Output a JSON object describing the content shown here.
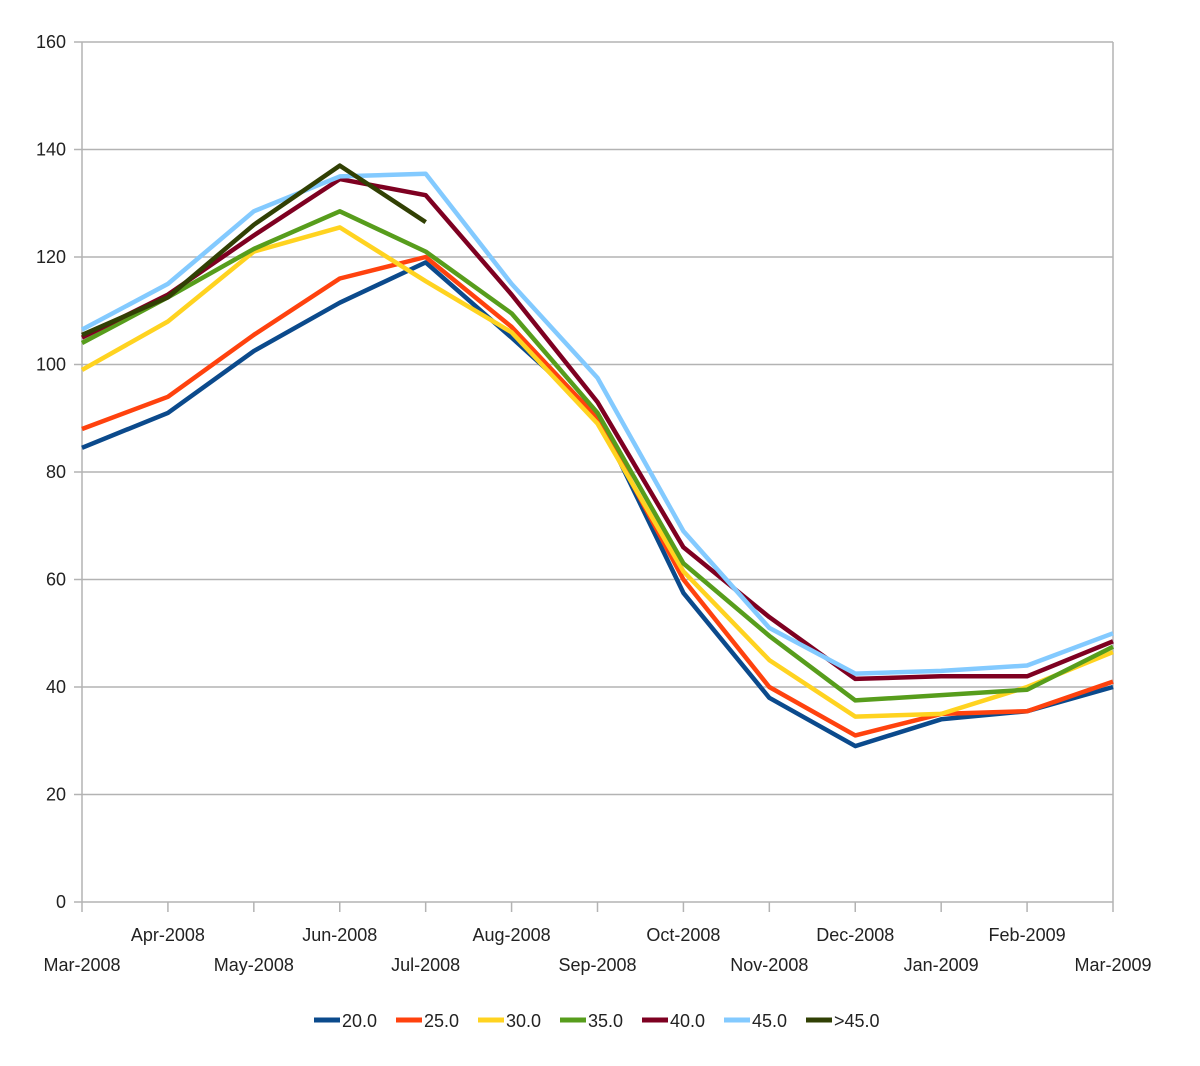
{
  "chart_data": {
    "type": "line",
    "title": "",
    "xlabel": "",
    "ylabel": "",
    "ylim": [
      0,
      160
    ],
    "yticks": [
      0,
      20,
      40,
      60,
      80,
      100,
      120,
      140,
      160
    ],
    "grid": true,
    "legend_position": "bottom",
    "x": [
      "Mar-2008",
      "Apr-2008",
      "May-2008",
      "Jun-2008",
      "Jul-2008",
      "Aug-2008",
      "Sep-2008",
      "Oct-2008",
      "Nov-2008",
      "Dec-2008",
      "Jan-2009",
      "Feb-2009",
      "Mar-2009"
    ],
    "series": [
      {
        "name": "20.0",
        "color": "#0b4a8c",
        "values": [
          84.5,
          91,
          102.5,
          111.5,
          119,
          105,
          90.5,
          57.5,
          38,
          29,
          34,
          35.5,
          40
        ]
      },
      {
        "name": "25.0",
        "color": "#ff420e",
        "values": [
          88,
          94,
          105.5,
          116,
          120,
          107,
          90,
          60,
          40,
          31,
          35,
          35.5,
          41
        ]
      },
      {
        "name": "30.0",
        "color": "#ffd320",
        "values": [
          99,
          108,
          121,
          125.5,
          115.5,
          106,
          89,
          61.5,
          45,
          34.5,
          35,
          40,
          46.5
        ]
      },
      {
        "name": "35.0",
        "color": "#579d1c",
        "values": [
          104,
          112.5,
          121.5,
          128.5,
          121,
          109.5,
          91,
          63,
          49.5,
          37.5,
          38.5,
          39.5,
          47.5
        ]
      },
      {
        "name": "40.0",
        "color": "#7e0021",
        "values": [
          105,
          113,
          124,
          134.5,
          131.5,
          113,
          93,
          66,
          53,
          41.5,
          42,
          42,
          48.5
        ]
      },
      {
        "name": "45.0",
        "color": "#83caff",
        "values": [
          106.5,
          115,
          128.5,
          135,
          135.5,
          115,
          97.5,
          69,
          51,
          42.5,
          43,
          44,
          50
        ]
      },
      {
        "name": ">45.0",
        "color": "#314004",
        "values": [
          105.5,
          112.5,
          126,
          137,
          126.5,
          null,
          null,
          null,
          null,
          null,
          null,
          null,
          null
        ]
      }
    ]
  }
}
